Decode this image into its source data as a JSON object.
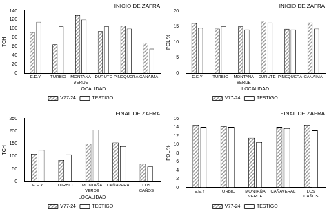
{
  "chart_data": [
    {
      "type": "bar",
      "title": "INICIO DE ZAFRA",
      "y_label": "TCH",
      "x_label": "LOCALIDAD",
      "categories": [
        "E.E.Y",
        "TURBIO",
        "MONTAÑA VERDE",
        "DURUTE",
        "PINEQUERA",
        "CANAIMA"
      ],
      "series": [
        {
          "name": "V77-24",
          "color": "#9a9a9a",
          "values": [
            92,
            65,
            130,
            94,
            107,
            68
          ]
        },
        {
          "name": "TESTIGO",
          "color": "#ffffff",
          "values": [
            115,
            105,
            120,
            105,
            100,
            55
          ]
        }
      ],
      "ylim": [
        0,
        140
      ],
      "yticks": [
        0,
        20,
        40,
        60,
        80,
        100,
        120,
        140
      ],
      "grid": false,
      "legend": "bottom"
    },
    {
      "type": "bar",
      "title": "INICIO DE ZAFRA",
      "y_label": "POL %",
      "x_label": "LOCALIDAD",
      "categories": [
        "E.E.Y",
        "TURBIO",
        "MONTAÑA VERDE",
        "DURUTE",
        "PINEQUERA",
        "CANAIMA"
      ],
      "series": [
        {
          "name": "V77-24",
          "color": "#9a9a9a",
          "values": [
            16,
            14.3,
            15,
            16.8,
            14.2,
            16.2
          ]
        },
        {
          "name": "TESTIGO",
          "color": "#ffffff",
          "values": [
            14.5,
            15,
            14,
            16.2,
            14,
            14.3
          ]
        }
      ],
      "ylim": [
        0,
        20
      ],
      "yticks": [
        0,
        5,
        10,
        15,
        20
      ],
      "grid": false,
      "legend": "bottom"
    },
    {
      "type": "bar",
      "title": "FINAL DE ZAFRA",
      "y_label": "TCH",
      "x_label": "LOCALIDAD",
      "categories": [
        "E.E.Y",
        "TURBIO",
        "MONTAÑA VERDE",
        "CAÑAVERAL",
        "LOS CAÑOS"
      ],
      "series": [
        {
          "name": "V77-24",
          "color": "#9a9a9a",
          "values": [
            110,
            85,
            150,
            155,
            70
          ]
        },
        {
          "name": "TESTIGO",
          "color": "#ffffff",
          "values": [
            125,
            108,
            205,
            140,
            60
          ]
        }
      ],
      "ylim": [
        0,
        250
      ],
      "yticks": [
        0,
        50,
        100,
        150,
        200,
        250
      ],
      "grid": false,
      "legend": "bottom"
    },
    {
      "type": "bar",
      "title": "FINAL DE ZAFRA",
      "y_label": "POL %",
      "categories": [
        "E.E.Y",
        "TURBIO",
        "MONTAÑA VERDE",
        "CAÑAVERAL",
        "LOS CAÑOS"
      ],
      "series": [
        {
          "name": "V77-24",
          "color": "#9a9a9a",
          "values": [
            14.5,
            14.2,
            11.5,
            14,
            14.5
          ]
        },
        {
          "name": "TESTIGO",
          "color": "#ffffff",
          "values": [
            14,
            14,
            10.5,
            13.7,
            13.2
          ]
        }
      ],
      "ylim": [
        0,
        16
      ],
      "yticks": [
        0,
        2,
        4,
        6,
        8,
        10,
        12,
        14,
        16
      ],
      "grid": false,
      "legend": "bottom"
    }
  ]
}
